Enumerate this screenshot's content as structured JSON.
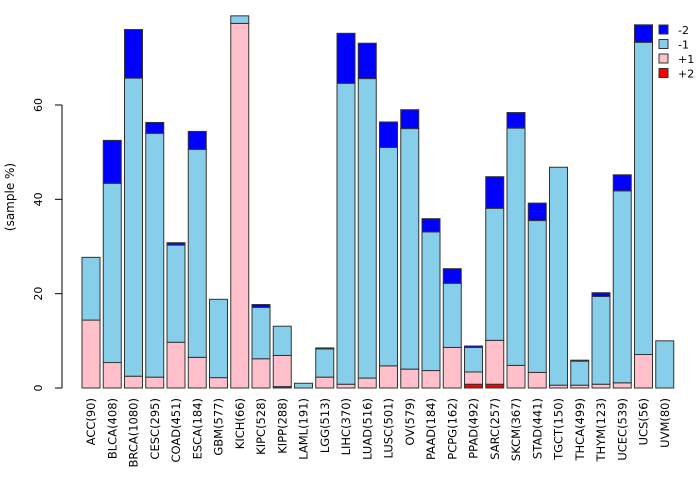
{
  "chart_data": {
    "type": "bar",
    "stacked": true,
    "title": "",
    "xlabel": "",
    "ylabel": "(sample %)",
    "ylim": [
      0,
      80
    ],
    "yticks": [
      0,
      20,
      40,
      60
    ],
    "legend_position": "top-right",
    "categories": [
      "ACC(90)",
      "BLCA(408)",
      "BRCA(1080)",
      "CESC(295)",
      "COAD(451)",
      "ESCA(184)",
      "GBM(577)",
      "KICH(66)",
      "KIPC(528)",
      "KIPP(288)",
      "LAML(191)",
      "LGG(513)",
      "LIHC(370)",
      "LUAD(516)",
      "LUSC(501)",
      "OV(579)",
      "PAAD(184)",
      "PCPG(162)",
      "PPAD(492)",
      "SARC(257)",
      "SKCM(367)",
      "STAD(441)",
      "TGCT(150)",
      "THCA(499)",
      "THYM(123)",
      "UCEC(539)",
      "UCS(56)",
      "UVM(80)"
    ],
    "series": [
      {
        "name": "+2",
        "color": "#ff0000",
        "values": [
          0,
          0,
          0,
          0,
          0,
          0,
          0,
          0,
          0,
          0.3,
          0,
          0,
          0,
          0,
          0,
          0,
          0,
          0,
          0.8,
          0.8,
          0,
          0,
          0,
          0,
          0,
          0,
          0,
          0
        ]
      },
      {
        "name": "+1",
        "color": "#ffc0cb",
        "values": [
          14.4,
          5.4,
          2.5,
          2.3,
          9.7,
          6.5,
          2.2,
          77.3,
          6.2,
          6.6,
          0,
          2.3,
          0.8,
          2.1,
          4.7,
          4.0,
          3.7,
          8.6,
          2.6,
          9.3,
          4.8,
          3.3,
          0.6,
          0.6,
          0.8,
          1.1,
          7.1,
          0
        ]
      },
      {
        "name": "-1",
        "color": "#87ceeb",
        "values": [
          13.3,
          38.0,
          63.2,
          51.7,
          20.6,
          44.1,
          16.6,
          1.6,
          10.9,
          6.2,
          1.0,
          6.0,
          63.8,
          63.5,
          46.3,
          51.0,
          29.4,
          13.6,
          5.2,
          28.0,
          50.3,
          32.2,
          46.2,
          5.1,
          18.6,
          40.7,
          66.2,
          10.0
        ]
      },
      {
        "name": "-2",
        "color": "#0000ff",
        "values": [
          0,
          9.1,
          10.3,
          2.3,
          0.5,
          3.8,
          0,
          0,
          0.6,
          0,
          0,
          0.2,
          10.6,
          7.5,
          5.4,
          4.0,
          2.8,
          3.1,
          0.3,
          6.7,
          3.3,
          3.7,
          0,
          0.2,
          0.8,
          3.4,
          3.7,
          0
        ]
      }
    ],
    "legend_order": [
      "-2",
      "-1",
      "+1",
      "+2"
    ]
  }
}
